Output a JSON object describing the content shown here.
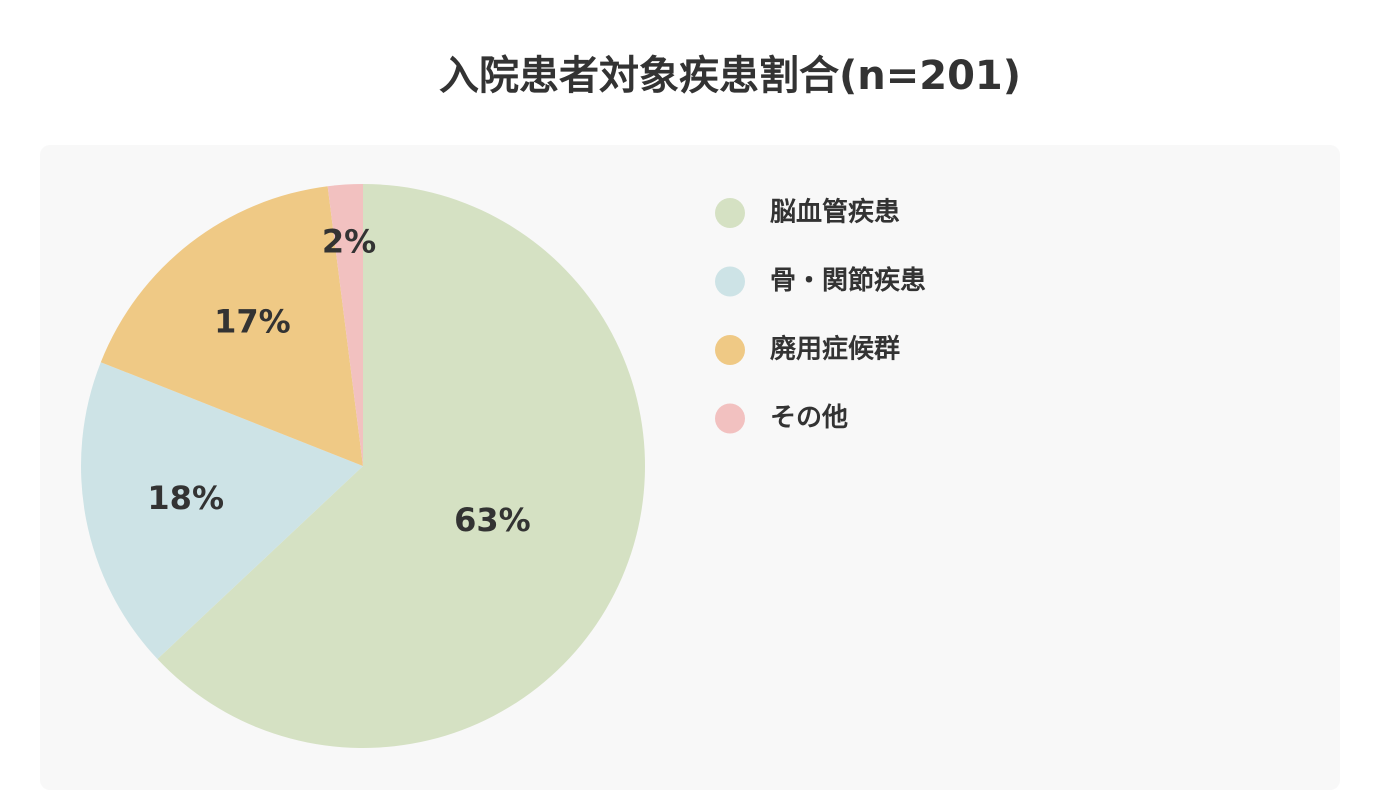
{
  "chart_data": {
    "type": "pie",
    "title": "入院患者対象疾患割合(n=201)",
    "categories": [
      "脳血管疾患",
      "骨・関節疾患",
      "廃用症候群",
      "その他"
    ],
    "values": [
      63,
      18,
      17,
      2
    ],
    "value_labels": [
      "63%",
      "18%",
      "17%",
      "2%"
    ],
    "colors": [
      "#d5e1c3",
      "#cde3e6",
      "#efc985",
      "#f2c1c0"
    ],
    "legend": "right"
  }
}
